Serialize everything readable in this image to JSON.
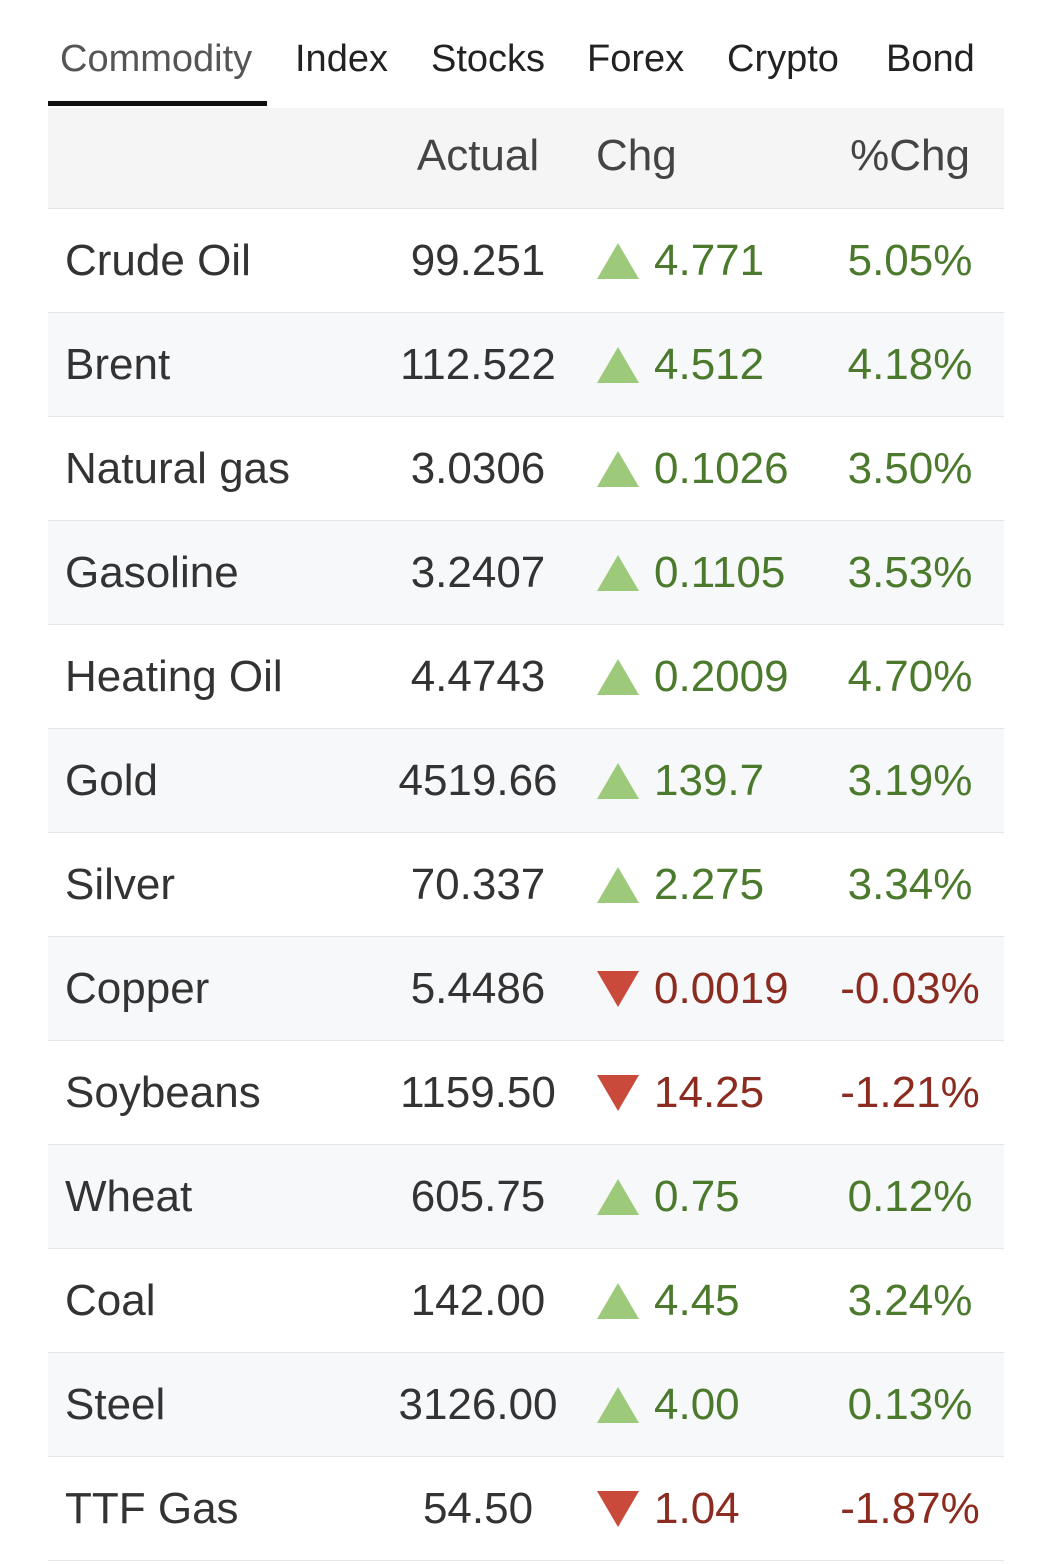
{
  "tabs": [
    "Commodity",
    "Index",
    "Stocks",
    "Forex",
    "Crypto",
    "Bond"
  ],
  "active_tab": 0,
  "table": {
    "columns": [
      "Actual",
      "Chg",
      "%Chg"
    ],
    "rows": [
      {
        "name": "Crude Oil",
        "actual": "99.251",
        "chg": "4.771",
        "pct": "5.05%",
        "direction": "up"
      },
      {
        "name": "Brent",
        "actual": "112.522",
        "chg": "4.512",
        "pct": "4.18%",
        "direction": "up"
      },
      {
        "name": "Natural gas",
        "actual": "3.0306",
        "chg": "0.1026",
        "pct": "3.50%",
        "direction": "up"
      },
      {
        "name": "Gasoline",
        "actual": "3.2407",
        "chg": "0.1105",
        "pct": "3.53%",
        "direction": "up"
      },
      {
        "name": "Heating Oil",
        "actual": "4.4743",
        "chg": "0.2009",
        "pct": "4.70%",
        "direction": "up"
      },
      {
        "name": "Gold",
        "actual": "4519.66",
        "chg": "139.7",
        "pct": "3.19%",
        "direction": "up"
      },
      {
        "name": "Silver",
        "actual": "70.337",
        "chg": "2.275",
        "pct": "3.34%",
        "direction": "up"
      },
      {
        "name": "Copper",
        "actual": "5.4486",
        "chg": "0.0019",
        "pct": "-0.03%",
        "direction": "down"
      },
      {
        "name": "Soybeans",
        "actual": "1159.50",
        "chg": "14.25",
        "pct": "-1.21%",
        "direction": "down"
      },
      {
        "name": "Wheat",
        "actual": "605.75",
        "chg": "0.75",
        "pct": "0.12%",
        "direction": "up"
      },
      {
        "name": "Coal",
        "actual": "142.00",
        "chg": "4.45",
        "pct": "3.24%",
        "direction": "up"
      },
      {
        "name": "Steel",
        "actual": "3126.00",
        "chg": "4.00",
        "pct": "0.13%",
        "direction": "up"
      },
      {
        "name": "TTF Gas",
        "actual": "54.50",
        "chg": "1.04",
        "pct": "-1.87%",
        "direction": "down"
      }
    ]
  }
}
